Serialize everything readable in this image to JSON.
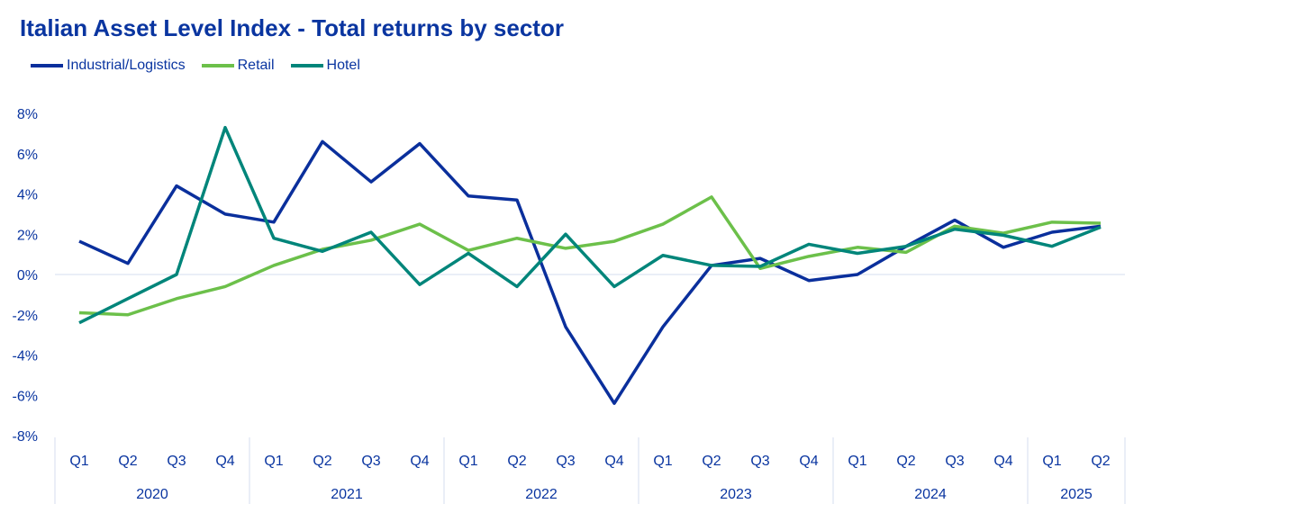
{
  "chart_data": {
    "type": "line",
    "title": "Italian Asset Level Index - Total returns by sector",
    "xlabel": "",
    "ylabel": "",
    "ylim": [
      -8,
      8
    ],
    "yticks": [
      "8%",
      "6%",
      "4%",
      "2%",
      "0%",
      "-2%",
      "-4%",
      "-6%",
      "-8%"
    ],
    "ytick_values": [
      8,
      6,
      4,
      2,
      0,
      -2,
      -4,
      -6,
      -8
    ],
    "quarters": [
      "Q1",
      "Q2",
      "Q3",
      "Q4",
      "Q1",
      "Q2",
      "Q3",
      "Q4",
      "Q1",
      "Q2",
      "Q3",
      "Q4",
      "Q1",
      "Q2",
      "Q3",
      "Q4",
      "Q1",
      "Q2",
      "Q3",
      "Q4",
      "Q1",
      "Q2"
    ],
    "years": [
      {
        "label": "2020",
        "quarters": 4
      },
      {
        "label": "2021",
        "quarters": 4
      },
      {
        "label": "2022",
        "quarters": 4
      },
      {
        "label": "2023",
        "quarters": 4
      },
      {
        "label": "2024",
        "quarters": 4
      },
      {
        "label": "2025",
        "quarters": 2
      }
    ],
    "legend_position": "top-left",
    "series": [
      {
        "name": "Industrial/Logistics",
        "color": "#0a2f9c",
        "values": [
          1.65,
          0.55,
          4.4,
          3.0,
          2.6,
          6.6,
          4.6,
          6.5,
          3.9,
          3.7,
          -2.6,
          -6.4,
          -2.6,
          0.45,
          0.8,
          -0.3,
          0.0,
          1.4,
          2.7,
          1.35,
          2.1,
          2.4
        ]
      },
      {
        "name": "Retail",
        "color": "#6cc04a",
        "values": [
          -1.9,
          -2.0,
          -1.2,
          -0.6,
          0.45,
          1.25,
          1.7,
          2.5,
          1.2,
          1.8,
          1.3,
          1.65,
          2.5,
          3.85,
          0.3,
          0.9,
          1.35,
          1.1,
          2.4,
          2.05,
          2.6,
          2.55
        ]
      },
      {
        "name": "Hotel",
        "color": "#00857a",
        "values": [
          -2.4,
          -1.2,
          0.0,
          7.3,
          1.8,
          1.15,
          2.1,
          -0.5,
          1.05,
          -0.6,
          2.0,
          -0.6,
          0.95,
          0.45,
          0.4,
          1.5,
          1.05,
          1.4,
          2.25,
          1.95,
          1.4,
          2.35
        ]
      }
    ]
  }
}
